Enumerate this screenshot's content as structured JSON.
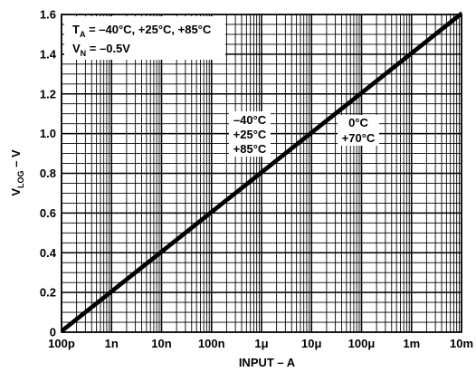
{
  "chart_data": {
    "type": "line",
    "xscale": "log",
    "xlim": [
      1e-10,
      0.01
    ],
    "ylim": [
      0,
      1.6
    ],
    "x_tick_values": [
      1e-10,
      1e-09,
      1e-08,
      1e-07,
      1e-06,
      1e-05,
      0.0001,
      0.001,
      0.01
    ],
    "x_tick_labels": [
      "100p",
      "1n",
      "10n",
      "100n",
      "1μ",
      "10μ",
      "100μ",
      "1m",
      "10m"
    ],
    "y_ticks": [
      0,
      0.2,
      0.4,
      0.6,
      0.8,
      1.0,
      1.2,
      1.4,
      1.6
    ],
    "y_tick_labels": [
      "0",
      "0.2",
      "0.4",
      "0.6",
      "0.8",
      "1.0",
      "1.2",
      "1.4",
      "1.6"
    ],
    "xlabel": "INPUT – A",
    "ylabel": {
      "main": "V",
      "sub": "LOG",
      "suffix": " – V"
    },
    "grid": true,
    "series": [
      {
        "name": "−40°C / +25°C / +85°C",
        "x": [
          1e-10,
          0.01
        ],
        "y": [
          0.0,
          1.6
        ]
      },
      {
        "name": "0°C / +70°C",
        "x": [
          1e-10,
          0.01
        ],
        "y": [
          0.01,
          1.61
        ]
      }
    ],
    "conditions": {
      "line1": {
        "main": "T",
        "sub": "A",
        "rest": " = –40°C, +25°C, +85°C"
      },
      "line2": {
        "main": "V",
        "sub": "N",
        "rest": " = –0.5V"
      }
    },
    "annotations": {
      "left": [
        "–40°C",
        "+25°C",
        "+85°C"
      ],
      "right": [
        "0°C",
        "+70°C"
      ]
    },
    "colors": {
      "line": "#000000",
      "grid": "#000000",
      "background": "#ffffff"
    }
  }
}
